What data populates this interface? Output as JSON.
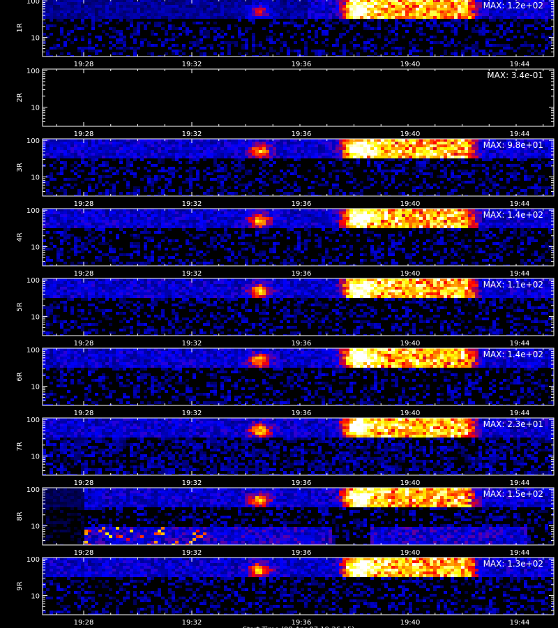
{
  "chart_data": {
    "type": "heatmap",
    "x_ticks": [
      "19:28",
      "19:32",
      "19:36",
      "19:40",
      "19:44"
    ],
    "x_range_minutes": [
      "19:26:15",
      "19:46:30"
    ],
    "y_scale": "log",
    "y_range": [
      3,
      110
    ],
    "y_ticks": [
      "10",
      "100"
    ],
    "colormap": [
      "#000000",
      "#0000ff",
      "#ff0000",
      "#ffff00",
      "#ffffff"
    ],
    "x_label": "Start Time (08-Apr-07 19:26:15)",
    "panels": [
      {
        "label": "1R",
        "max_label": "MAX: 1.2e+02",
        "max": 120
      },
      {
        "label": "2R",
        "max_label": "MAX: 3.4e-01",
        "max": 0.34
      },
      {
        "label": "3R",
        "max_label": "MAX: 9.8e+01",
        "max": 98
      },
      {
        "label": "4R",
        "max_label": "MAX: 1.4e+02",
        "max": 140
      },
      {
        "label": "5R",
        "max_label": "MAX: 1.1e+02",
        "max": 110
      },
      {
        "label": "6R",
        "max_label": "MAX: 1.4e+02",
        "max": 140
      },
      {
        "label": "7R",
        "max_label": "MAX: 2.3e+01",
        "max": 23
      },
      {
        "label": "8R",
        "max_label": "MAX: 1.5e+02",
        "max": 150
      },
      {
        "label": "9R",
        "max_label": "MAX: 1.3e+02",
        "max": 130
      }
    ]
  }
}
